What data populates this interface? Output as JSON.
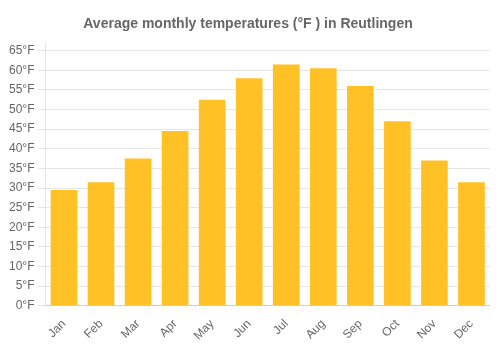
{
  "chart_data": {
    "type": "bar",
    "title": "Average monthly temperatures (°F ) in Reutlingen",
    "categories": [
      "Jan",
      "Feb",
      "Mar",
      "Apr",
      "May",
      "Jun",
      "Jul",
      "Aug",
      "Sep",
      "Oct",
      "Nov",
      "Dec"
    ],
    "values": [
      29.5,
      31.5,
      37.5,
      44.5,
      52.5,
      58.0,
      61.5,
      60.5,
      56.0,
      47.0,
      37.0,
      31.5
    ],
    "color": "#FFC125",
    "ylim": [
      0,
      67
    ],
    "yticks": [
      {
        "value": 0,
        "label": "0°F"
      },
      {
        "value": 5,
        "label": "5°F"
      },
      {
        "value": 10,
        "label": "10°F"
      },
      {
        "value": 15,
        "label": "15°F"
      },
      {
        "value": 20,
        "label": "20°F"
      },
      {
        "value": 25,
        "label": "25°F"
      },
      {
        "value": 30,
        "label": "30°F"
      },
      {
        "value": 35,
        "label": "35°F"
      },
      {
        "value": 40,
        "label": "40°F"
      },
      {
        "value": 45,
        "label": "45°F"
      },
      {
        "value": 50,
        "label": "50°F"
      },
      {
        "value": 55,
        "label": "55°F"
      },
      {
        "value": 60,
        "label": "60°F"
      },
      {
        "value": 65,
        "label": "65°F"
      }
    ],
    "grid": true
  }
}
